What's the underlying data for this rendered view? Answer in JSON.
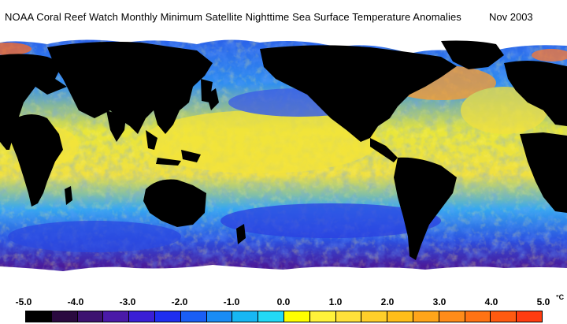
{
  "title": {
    "text": "NOAA Coral Reef Watch Monthly Minimum Satellite Nighttime Sea Surface Temperature Anomalies",
    "date": "Nov 2003"
  },
  "legend": {
    "ticks": [
      "-5.0",
      "-4.0",
      "-3.0",
      "-2.0",
      "-1.0",
      "0.0",
      "1.0",
      "2.0",
      "3.0",
      "4.0",
      "5.0"
    ],
    "unit": "°C",
    "colors": [
      "#000000",
      "#2a0a3f",
      "#3d1270",
      "#4a1aa8",
      "#3a1fd6",
      "#1f2ef0",
      "#1a5ef5",
      "#1a8cf5",
      "#17b7f3",
      "#22d9f6",
      "#ffff00",
      "#fff23a",
      "#ffe13a",
      "#ffcf2a",
      "#ffbe1a",
      "#ffa51a",
      "#ff8c1a",
      "#ff7314",
      "#ff5a10",
      "#ff3c10"
    ]
  },
  "map_colors": {
    "ocean_cold": "#3a52e8",
    "ocean_mid": "#2fa8f0",
    "ocean_warm": "#f2e83a",
    "land": "#000000",
    "ice": "#ffffff",
    "deep_cold": "#4a1a9a",
    "hot": "#ff7a2a"
  }
}
